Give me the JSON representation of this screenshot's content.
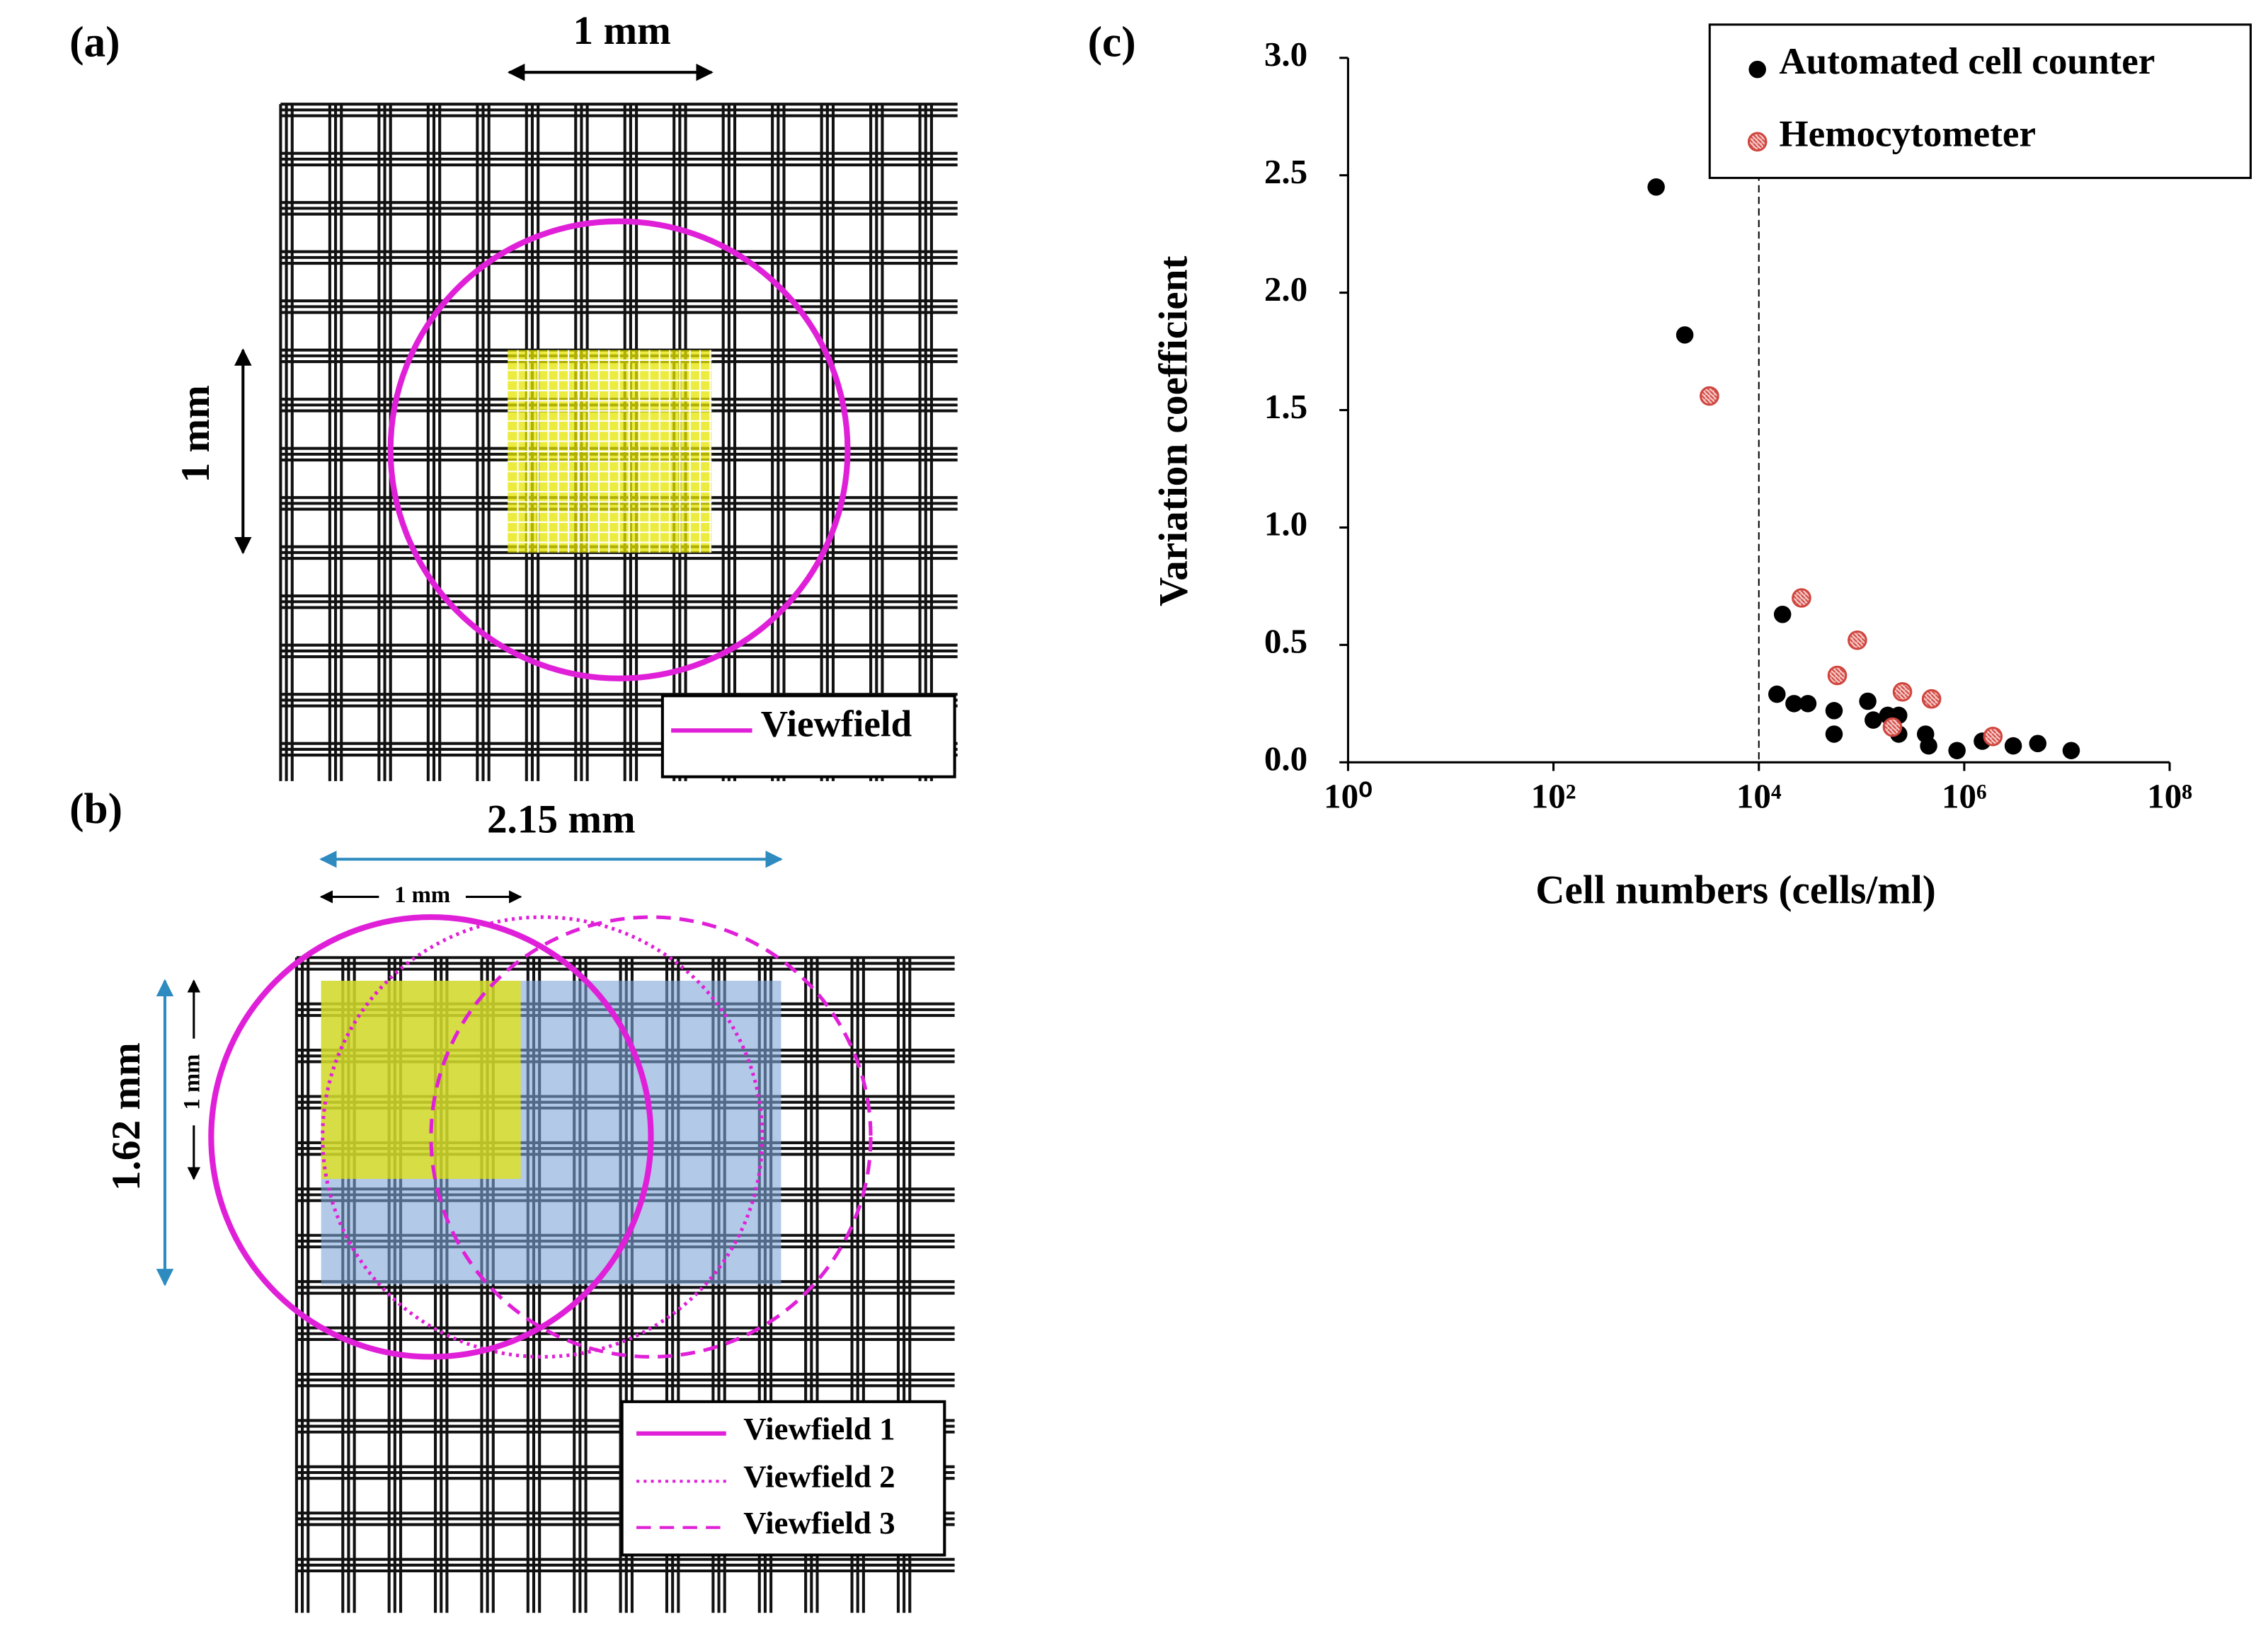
{
  "panels": {
    "a": {
      "label": "(a)",
      "width_label": "1 mm",
      "height_label": "1 mm",
      "legend": "Viewfield"
    },
    "b": {
      "label": "(b)",
      "width_label": "2.15 mm",
      "small_width_label": "1 mm",
      "height_label": "1.62 mm",
      "small_height_label": "1 mm",
      "legend": [
        "Viewfield 1",
        "Viewfield 2",
        "Viewfield 3"
      ]
    }
  },
  "chart_data": {
    "type": "scatter",
    "panel_label": "(c)",
    "x_label": "Cell numbers  (cells/ml)",
    "y_label": "Variation  coefficient",
    "xscale": "log",
    "xlim": [
      1,
      100000000
    ],
    "xticks": [
      {
        "value": 1,
        "label": "10⁰"
      },
      {
        "value": 100,
        "label": "10²"
      },
      {
        "value": 10000,
        "label": "10⁴"
      },
      {
        "value": 1000000,
        "label": "10⁶"
      },
      {
        "value": 100000000,
        "label": "10⁸"
      }
    ],
    "ylim": [
      0,
      3
    ],
    "yticks": [
      {
        "value": 0,
        "label": "0.0"
      },
      0.5,
      {
        "value": 1,
        "label": "1.0"
      },
      1.5,
      {
        "value": 2,
        "label": "2.0"
      },
      2.5,
      {
        "value": 3,
        "label": "3.0"
      }
    ],
    "vline": 10000,
    "legend_position": "upper right",
    "series": [
      {
        "name": "Automated cell counter",
        "color": "#000000",
        "x": [
          1000,
          1900,
          17000,
          15000,
          22000,
          30000,
          54000,
          54000,
          115000,
          130000,
          180000,
          230000,
          230000,
          420000,
          450000,
          850000,
          1500000,
          3000000,
          5200000,
          11000000
        ],
        "values": [
          2.45,
          1.82,
          0.63,
          0.29,
          0.25,
          0.25,
          0.22,
          0.12,
          0.26,
          0.18,
          0.2,
          0.2,
          0.12,
          0.12,
          0.07,
          0.05,
          0.09,
          0.07,
          0.08,
          0.05
        ]
      },
      {
        "name": "Hemocytometer",
        "color": "#d0463f",
        "x": [
          3300,
          26000,
          91000,
          58000,
          250000,
          480000,
          200000,
          1900000
        ],
        "values": [
          1.56,
          0.7,
          0.52,
          0.37,
          0.3,
          0.27,
          0.15,
          0.11
        ]
      }
    ]
  }
}
